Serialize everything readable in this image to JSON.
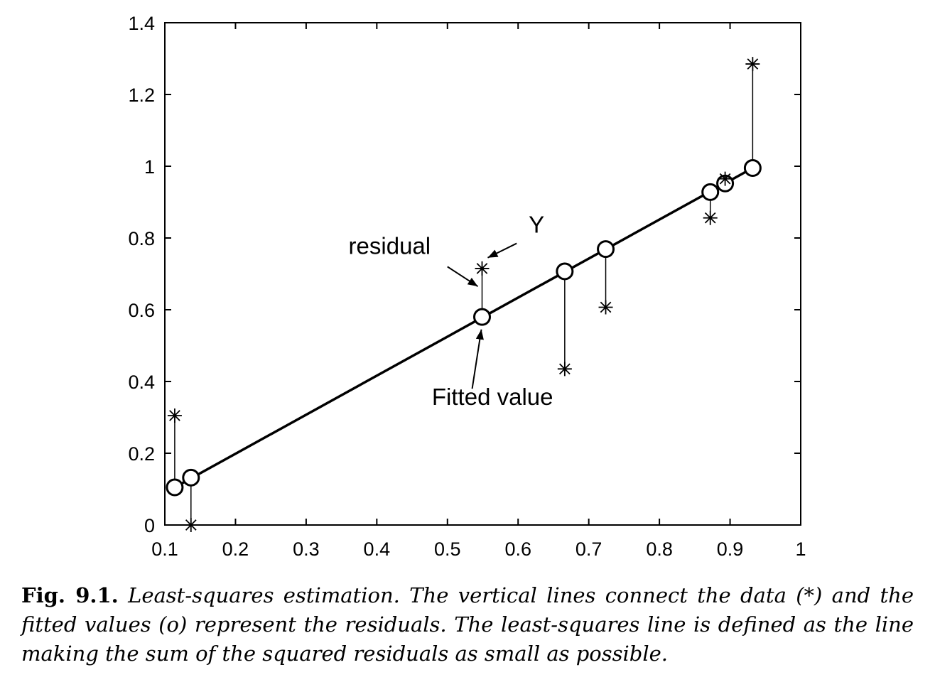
{
  "chart_data": {
    "type": "scatter",
    "title": "",
    "xlabel": "",
    "ylabel": "",
    "xlim": [
      0.1,
      1
    ],
    "ylim": [
      0,
      1.4
    ],
    "x_ticks": [
      "0.1",
      "0.2",
      "0.3",
      "0.4",
      "0.5",
      "0.6",
      "0.7",
      "0.8",
      "0.9",
      "1"
    ],
    "y_ticks": [
      "0",
      "0.2",
      "0.4",
      "0.6",
      "0.8",
      "1",
      "1.2",
      "1.4"
    ],
    "grid": false,
    "series": [
      {
        "marker": "asterisk",
        "x": [
          0.114,
          0.137,
          0.549,
          0.666,
          0.724,
          0.872,
          0.893,
          0.932
        ],
        "y": [
          0.305,
          0.0,
          0.715,
          0.435,
          0.607,
          0.856,
          0.965,
          1.285
        ]
      },
      {
        "marker": "circle",
        "x": [
          0.114,
          0.137,
          0.549,
          0.666,
          0.724,
          0.872,
          0.893,
          0.932
        ],
        "y": [
          0.105,
          0.132,
          0.58,
          0.707,
          0.769,
          0.928,
          0.952,
          0.995
        ]
      }
    ],
    "fit_line": {
      "x": [
        0.114,
        0.932
      ],
      "y": [
        0.105,
        0.995
      ]
    },
    "annotations": [
      {
        "text": "residual",
        "text_at": [
          0.36,
          0.755
        ],
        "arrow_from": [
          0.5,
          0.72
        ],
        "arrow_to": [
          0.543,
          0.665
        ]
      },
      {
        "text": "Y",
        "text_at": [
          0.615,
          0.815
        ],
        "arrow_from": [
          0.598,
          0.785
        ],
        "arrow_to": [
          0.557,
          0.745
        ]
      },
      {
        "text": "Fitted value",
        "text_at": [
          0.478,
          0.335
        ],
        "arrow_from": [
          0.535,
          0.38
        ],
        "arrow_to": [
          0.548,
          0.545
        ]
      }
    ]
  },
  "caption": {
    "label": "Fig. 9.1.",
    "text": "Least-squares estimation. The vertical lines connect the data (*) and the fitted values (o) represent the residuals. The least-squares line is defined as the line making the sum of the squared residuals as small as possible."
  }
}
